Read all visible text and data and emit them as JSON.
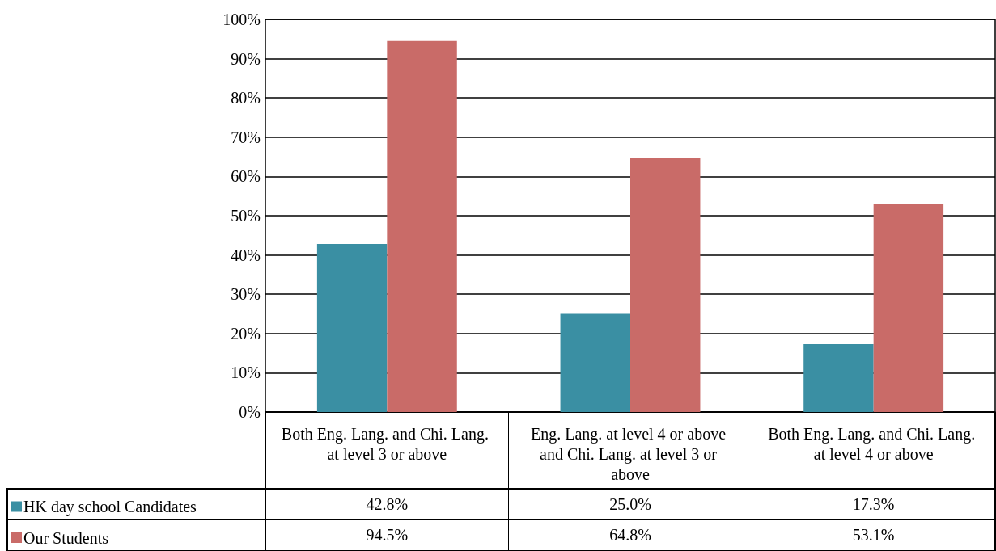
{
  "chart_data": {
    "type": "bar",
    "categories": [
      "Both Eng. Lang. and Chi. Lang. at level 3 or above",
      "Eng. Lang. at level 4 or above and Chi. Lang. at level 3 or above",
      "Both Eng. Lang. and Chi. Lang. at level 4 or above"
    ],
    "series": [
      {
        "name": "HK day school Candidates",
        "color": "#3a8fa3",
        "values": [
          42.8,
          25.0,
          17.3
        ],
        "value_labels": [
          "42.8%",
          "25.0%",
          "17.3%"
        ]
      },
      {
        "name": "Our Students",
        "color": "#c96b68",
        "values": [
          94.5,
          64.8,
          53.1
        ],
        "value_labels": [
          "94.5%",
          "64.8%",
          "53.1%"
        ]
      }
    ],
    "ylim": [
      0,
      100
    ],
    "yticks": [
      {
        "value": 0,
        "label": "0%"
      },
      {
        "value": 10,
        "label": "10%"
      },
      {
        "value": 20,
        "label": "20%"
      },
      {
        "value": 30,
        "label": "30%"
      },
      {
        "value": 40,
        "label": "40%"
      },
      {
        "value": 50,
        "label": "50%"
      },
      {
        "value": 60,
        "label": "60%"
      },
      {
        "value": 70,
        "label": "70%"
      },
      {
        "value": 80,
        "label": "80%"
      },
      {
        "value": 90,
        "label": "90%"
      },
      {
        "value": 100,
        "label": "100%"
      }
    ],
    "grid": "y",
    "legend": "bottom left"
  }
}
